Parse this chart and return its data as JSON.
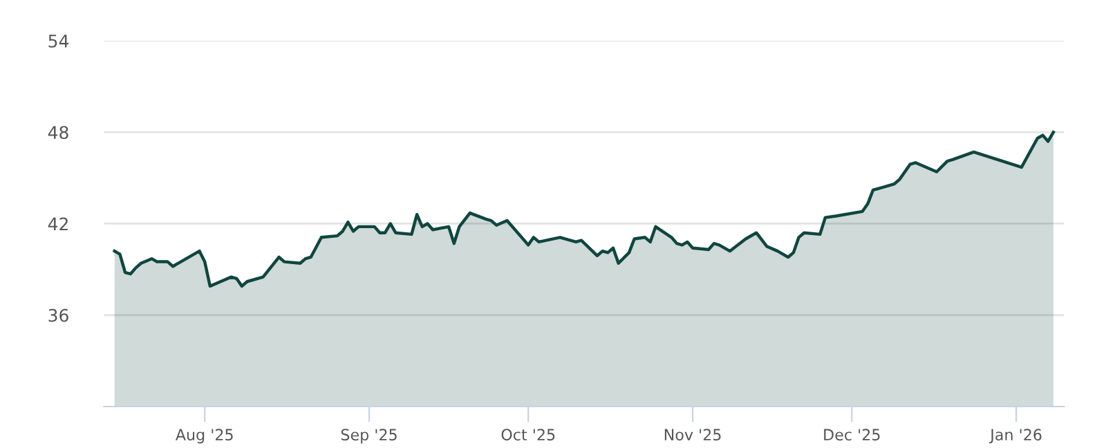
{
  "chart_data": {
    "type": "area",
    "color": "#10463f",
    "grid": "y",
    "x": [
      "2025-07-15",
      "2025-07-16",
      "2025-07-17",
      "2025-07-18",
      "2025-07-19",
      "2025-07-20",
      "2025-07-22",
      "2025-07-23",
      "2025-07-25",
      "2025-07-26",
      "2025-07-28",
      "2025-07-31",
      "2025-08-01",
      "2025-08-02",
      "2025-08-04",
      "2025-08-06",
      "2025-08-07",
      "2025-08-08",
      "2025-08-09",
      "2025-08-12",
      "2025-08-15",
      "2025-08-16",
      "2025-08-19",
      "2025-08-20",
      "2025-08-21",
      "2025-08-23",
      "2025-08-26",
      "2025-08-27",
      "2025-08-28",
      "2025-08-29",
      "2025-08-30",
      "2025-09-02",
      "2025-09-03",
      "2025-09-04",
      "2025-09-05",
      "2025-09-06",
      "2025-09-09",
      "2025-09-10",
      "2025-09-11",
      "2025-09-12",
      "2025-09-13",
      "2025-09-16",
      "2025-09-17",
      "2025-09-18",
      "2025-09-20",
      "2025-09-23",
      "2025-09-24",
      "2025-09-25",
      "2025-09-27",
      "2025-10-01",
      "2025-10-02",
      "2025-10-03",
      "2025-10-07",
      "2025-10-08",
      "2025-10-10",
      "2025-10-11",
      "2025-10-14",
      "2025-10-15",
      "2025-10-16",
      "2025-10-17",
      "2025-10-18",
      "2025-10-20",
      "2025-10-21",
      "2025-10-23",
      "2025-10-24",
      "2025-10-25",
      "2025-10-28",
      "2025-10-29",
      "2025-10-30",
      "2025-10-31",
      "2025-11-01",
      "2025-11-04",
      "2025-11-05",
      "2025-11-06",
      "2025-11-08",
      "2025-11-11",
      "2025-11-13",
      "2025-11-15",
      "2025-11-17",
      "2025-11-19",
      "2025-11-20",
      "2025-11-21",
      "2025-11-22",
      "2025-11-25",
      "2025-11-26",
      "2025-11-28",
      "2025-12-03",
      "2025-12-04",
      "2025-12-05",
      "2025-12-09",
      "2025-12-10",
      "2025-12-12",
      "2025-12-13",
      "2025-12-17",
      "2025-12-19",
      "2025-12-20",
      "2025-12-24",
      "2026-01-02",
      "2026-01-05",
      "2026-01-06",
      "2026-01-07",
      "2026-01-08"
    ],
    "values": [
      40.2,
      40.0,
      38.8,
      38.7,
      39.1,
      39.4,
      39.7,
      39.5,
      39.5,
      39.2,
      39.6,
      40.2,
      39.5,
      37.9,
      38.2,
      38.5,
      38.4,
      37.9,
      38.2,
      38.5,
      39.8,
      39.5,
      39.4,
      39.7,
      39.8,
      41.1,
      41.2,
      41.5,
      42.1,
      41.5,
      41.8,
      41.8,
      41.4,
      41.4,
      42.0,
      41.4,
      41.3,
      42.6,
      41.8,
      42.0,
      41.6,
      41.8,
      40.7,
      41.8,
      42.7,
      42.3,
      42.2,
      41.9,
      42.2,
      40.6,
      41.1,
      40.8,
      41.1,
      41.0,
      40.8,
      40.9,
      39.9,
      40.2,
      40.1,
      40.4,
      39.4,
      40.1,
      41.0,
      41.1,
      40.8,
      41.8,
      41.1,
      40.7,
      40.6,
      40.8,
      40.4,
      40.3,
      40.7,
      40.6,
      40.2,
      41.0,
      41.4,
      40.5,
      40.2,
      39.8,
      40.1,
      41.1,
      41.4,
      41.3,
      42.4,
      42.5,
      42.8,
      43.3,
      44.2,
      44.6,
      44.9,
      45.9,
      46.0,
      45.4,
      46.1,
      46.2,
      46.7,
      45.7,
      47.6,
      47.8,
      47.4,
      48.0
    ],
    "xlim": [
      "2025-07-13",
      "2026-01-10"
    ],
    "xticks": [
      {
        "value": "2025-08-01",
        "label": "Aug '25"
      },
      {
        "value": "2025-09-01",
        "label": "Sep '25"
      },
      {
        "value": "2025-10-01",
        "label": "Oct '25"
      },
      {
        "value": "2025-11-01",
        "label": "Nov '25"
      },
      {
        "value": "2025-12-01",
        "label": "Dec '25"
      },
      {
        "value": "2026-01-01",
        "label": "Jan '26"
      }
    ],
    "ylim": [
      30,
      54
    ],
    "yticks": [
      36,
      42,
      48,
      54
    ]
  }
}
